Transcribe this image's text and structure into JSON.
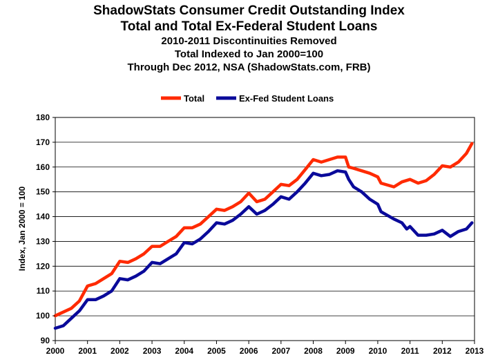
{
  "chart_data": {
    "type": "line",
    "title": "ShadowStats Consumer Credit Outstanding Index",
    "title_line2": "Total and Total Ex-Federal Student Loans",
    "subtitle1": "2010-2011 Discontinuities Removed",
    "subtitle2": "Total Indexed to Jan 2000=100",
    "subtitle3": "Through Dec 2012, NSA (ShadowStats.com, FRB)",
    "ylabel": "Index, Jan 2000 = 100",
    "xlabel": "",
    "ylim": [
      90,
      180
    ],
    "xlim": [
      2000,
      2013
    ],
    "yticks": [
      "90",
      "100",
      "110",
      "120",
      "130",
      "140",
      "150",
      "160",
      "170",
      "180"
    ],
    "xticks": [
      "2000",
      "2001",
      "2002",
      "2003",
      "2004",
      "2005",
      "2006",
      "2007",
      "2008",
      "2009",
      "2010",
      "2011",
      "2012",
      "2013"
    ],
    "grid": true,
    "legend_position": "top",
    "series": [
      {
        "name": "Total",
        "color": "#ff2a00",
        "points": [
          [
            2000.0,
            100
          ],
          [
            2000.5,
            103
          ],
          [
            2000.75,
            106
          ],
          [
            2001.0,
            112
          ],
          [
            2001.25,
            113
          ],
          [
            2001.5,
            115
          ],
          [
            2001.75,
            117
          ],
          [
            2002.0,
            122
          ],
          [
            2002.25,
            121.5
          ],
          [
            2002.5,
            123
          ],
          [
            2002.75,
            125
          ],
          [
            2003.0,
            128
          ],
          [
            2003.25,
            128
          ],
          [
            2003.5,
            130
          ],
          [
            2003.75,
            132
          ],
          [
            2004.0,
            135.5
          ],
          [
            2004.25,
            135.5
          ],
          [
            2004.5,
            137
          ],
          [
            2004.75,
            140
          ],
          [
            2005.0,
            143
          ],
          [
            2005.25,
            142.5
          ],
          [
            2005.5,
            144
          ],
          [
            2005.75,
            146
          ],
          [
            2006.0,
            149.5
          ],
          [
            2006.25,
            146
          ],
          [
            2006.5,
            147
          ],
          [
            2006.75,
            150
          ],
          [
            2007.0,
            153
          ],
          [
            2007.25,
            152.5
          ],
          [
            2007.5,
            155
          ],
          [
            2007.75,
            159
          ],
          [
            2008.0,
            163
          ],
          [
            2008.25,
            162
          ],
          [
            2008.5,
            163
          ],
          [
            2008.75,
            164
          ],
          [
            2009.0,
            164
          ],
          [
            2009.1,
            160
          ],
          [
            2009.25,
            159.5
          ],
          [
            2009.5,
            158.5
          ],
          [
            2009.75,
            157.5
          ],
          [
            2010.0,
            156
          ],
          [
            2010.1,
            153.5
          ],
          [
            2010.5,
            152
          ],
          [
            2010.75,
            154
          ],
          [
            2011.0,
            155
          ],
          [
            2011.25,
            153.5
          ],
          [
            2011.5,
            154.5
          ],
          [
            2011.75,
            157
          ],
          [
            2012.0,
            160.5
          ],
          [
            2012.25,
            160
          ],
          [
            2012.5,
            162
          ],
          [
            2012.75,
            165.5
          ],
          [
            2012.92,
            169.5
          ]
        ]
      },
      {
        "name": "Ex-Fed Student Loans",
        "color": "#0a0a9a",
        "points": [
          [
            2000.0,
            95
          ],
          [
            2000.25,
            96
          ],
          [
            2000.5,
            99
          ],
          [
            2000.75,
            102
          ],
          [
            2001.0,
            106.5
          ],
          [
            2001.25,
            106.5
          ],
          [
            2001.5,
            108
          ],
          [
            2001.75,
            110
          ],
          [
            2002.0,
            115
          ],
          [
            2002.25,
            114.5
          ],
          [
            2002.5,
            116
          ],
          [
            2002.75,
            118
          ],
          [
            2003.0,
            121.5
          ],
          [
            2003.25,
            121
          ],
          [
            2003.5,
            123
          ],
          [
            2003.75,
            125
          ],
          [
            2004.0,
            129.5
          ],
          [
            2004.25,
            129
          ],
          [
            2004.5,
            131
          ],
          [
            2004.75,
            134
          ],
          [
            2005.0,
            137.5
          ],
          [
            2005.25,
            137
          ],
          [
            2005.5,
            138.5
          ],
          [
            2005.75,
            141
          ],
          [
            2006.0,
            144
          ],
          [
            2006.25,
            141
          ],
          [
            2006.5,
            142.5
          ],
          [
            2006.75,
            145
          ],
          [
            2007.0,
            148
          ],
          [
            2007.25,
            147
          ],
          [
            2007.5,
            150
          ],
          [
            2007.75,
            153.5
          ],
          [
            2008.0,
            157.5
          ],
          [
            2008.25,
            156.5
          ],
          [
            2008.5,
            157
          ],
          [
            2008.75,
            158.5
          ],
          [
            2009.0,
            158
          ],
          [
            2009.1,
            155
          ],
          [
            2009.25,
            152
          ],
          [
            2009.5,
            150
          ],
          [
            2009.75,
            147
          ],
          [
            2010.0,
            145
          ],
          [
            2010.1,
            142
          ],
          [
            2010.5,
            139
          ],
          [
            2010.75,
            137.5
          ],
          [
            2010.9,
            135
          ],
          [
            2011.0,
            136
          ],
          [
            2011.25,
            132.5
          ],
          [
            2011.5,
            132.5
          ],
          [
            2011.75,
            133
          ],
          [
            2012.0,
            134.5
          ],
          [
            2012.25,
            132
          ],
          [
            2012.5,
            134
          ],
          [
            2012.75,
            135
          ],
          [
            2012.92,
            137.5
          ]
        ]
      }
    ]
  }
}
